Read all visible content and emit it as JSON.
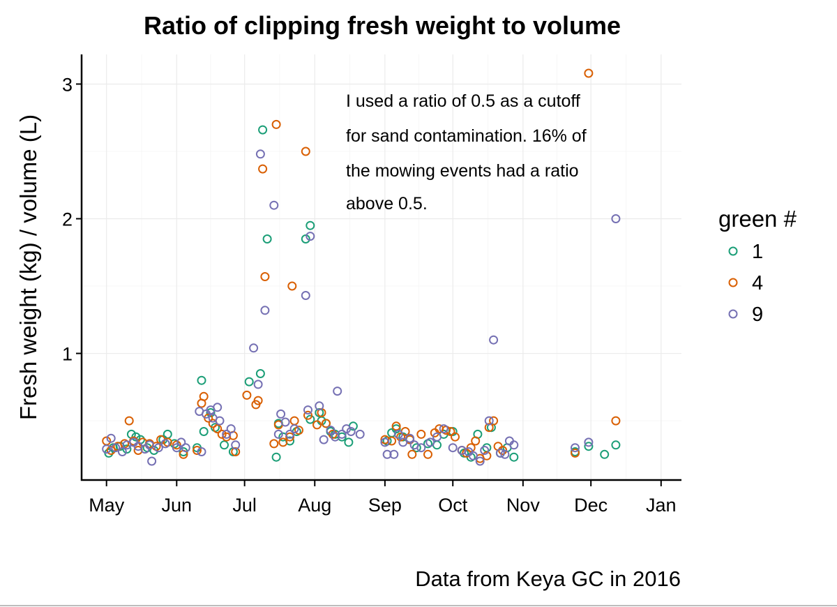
{
  "chart_data": {
    "type": "scatter",
    "title": "Ratio of clipping fresh weight to volume",
    "ylabel": "Fresh weight (kg) / volume (L)",
    "xlabel": "",
    "caption": "Data from Keya GC in 2016",
    "annotation": [
      "I used a ratio of 0.5 as a cutoff",
      "for sand contamination. 16% of",
      "the mowing events had a ratio",
      "above 0.5."
    ],
    "x_ticks": [
      "May",
      "Jun",
      "Jul",
      "Aug",
      "Sep",
      "Oct",
      "Nov",
      "Dec",
      "Jan"
    ],
    "x_tick_dates": [
      "2016-05-01",
      "2016-06-01",
      "2016-07-01",
      "2016-08-01",
      "2016-09-01",
      "2016-10-01",
      "2016-11-01",
      "2016-12-01",
      "2017-01-01"
    ],
    "xlim": [
      "2016-04-20",
      "2017-01-10"
    ],
    "y_ticks": [
      1,
      2,
      3
    ],
    "ylim": [
      0.06,
      3.22
    ],
    "grid": true,
    "legend": {
      "title": "green #",
      "placement": "right"
    },
    "series": [
      {
        "name": "1",
        "color": "#1b9e77",
        "points": [
          [
            "2016-05-02",
            0.26
          ],
          [
            "2016-05-04",
            0.3
          ],
          [
            "2016-05-07",
            0.31
          ],
          [
            "2016-05-10",
            0.29
          ],
          [
            "2016-05-12",
            0.4
          ],
          [
            "2016-05-14",
            0.38
          ],
          [
            "2016-05-16",
            0.36
          ],
          [
            "2016-05-19",
            0.3
          ],
          [
            "2016-05-22",
            0.28
          ],
          [
            "2016-05-26",
            0.36
          ],
          [
            "2016-05-28",
            0.4
          ],
          [
            "2016-05-31",
            0.33
          ],
          [
            "2016-06-04",
            0.27
          ],
          [
            "2016-06-10",
            0.3
          ],
          [
            "2016-06-12",
            0.8
          ],
          [
            "2016-06-13",
            0.42
          ],
          [
            "2016-06-16",
            0.56
          ],
          [
            "2016-06-18",
            0.45
          ],
          [
            "2016-06-22",
            0.32
          ],
          [
            "2016-06-26",
            0.27
          ],
          [
            "2016-07-03",
            0.79
          ],
          [
            "2016-07-08",
            0.85
          ],
          [
            "2016-07-09",
            2.66
          ],
          [
            "2016-07-11",
            1.85
          ],
          [
            "2016-07-15",
            0.23
          ],
          [
            "2016-07-16",
            0.48
          ],
          [
            "2016-07-18",
            0.38
          ],
          [
            "2016-07-21",
            0.35
          ],
          [
            "2016-07-24",
            0.42
          ],
          [
            "2016-07-28",
            1.85
          ],
          [
            "2016-07-30",
            1.95
          ],
          [
            "2016-07-30",
            0.51
          ],
          [
            "2016-08-03",
            0.56
          ],
          [
            "2016-08-04",
            0.5
          ],
          [
            "2016-08-06",
            0.48
          ],
          [
            "2016-08-08",
            0.42
          ],
          [
            "2016-08-10",
            0.4
          ],
          [
            "2016-08-13",
            0.38
          ],
          [
            "2016-08-16",
            0.34
          ],
          [
            "2016-08-18",
            0.46
          ],
          [
            "2016-09-02",
            0.35
          ],
          [
            "2016-09-04",
            0.41
          ],
          [
            "2016-09-06",
            0.44
          ],
          [
            "2016-09-09",
            0.38
          ],
          [
            "2016-09-12",
            0.36
          ],
          [
            "2016-09-15",
            0.3
          ],
          [
            "2016-09-20",
            0.33
          ],
          [
            "2016-09-24",
            0.32
          ],
          [
            "2016-09-27",
            0.4
          ],
          [
            "2016-10-01",
            0.42
          ],
          [
            "2016-10-06",
            0.26
          ],
          [
            "2016-10-09",
            0.23
          ],
          [
            "2016-10-12",
            0.4
          ],
          [
            "2016-10-16",
            0.3
          ],
          [
            "2016-10-18",
            0.45
          ],
          [
            "2016-10-22",
            0.26
          ],
          [
            "2016-10-25",
            0.3
          ],
          [
            "2016-10-28",
            0.23
          ],
          [
            "2016-11-24",
            0.27
          ],
          [
            "2016-11-30",
            0.31
          ],
          [
            "2016-12-07",
            0.25
          ],
          [
            "2016-12-12",
            0.32
          ]
        ]
      },
      {
        "name": "4",
        "color": "#d95f02",
        "points": [
          [
            "2016-05-01",
            0.35
          ],
          [
            "2016-05-03",
            0.28
          ],
          [
            "2016-05-06",
            0.31
          ],
          [
            "2016-05-09",
            0.33
          ],
          [
            "2016-05-11",
            0.5
          ],
          [
            "2016-05-13",
            0.35
          ],
          [
            "2016-05-15",
            0.28
          ],
          [
            "2016-05-17",
            0.34
          ],
          [
            "2016-05-20",
            0.33
          ],
          [
            "2016-05-23",
            0.31
          ],
          [
            "2016-05-25",
            0.36
          ],
          [
            "2016-05-28",
            0.34
          ],
          [
            "2016-06-01",
            0.32
          ],
          [
            "2016-06-04",
            0.25
          ],
          [
            "2016-06-10",
            0.28
          ],
          [
            "2016-06-12",
            0.63
          ],
          [
            "2016-06-13",
            0.68
          ],
          [
            "2016-06-15",
            0.52
          ],
          [
            "2016-06-17",
            0.48
          ],
          [
            "2016-06-19",
            0.44
          ],
          [
            "2016-06-21",
            0.4
          ],
          [
            "2016-06-23",
            0.38
          ],
          [
            "2016-06-26",
            0.39
          ],
          [
            "2016-06-27",
            0.27
          ],
          [
            "2016-07-02",
            0.69
          ],
          [
            "2016-07-06",
            0.62
          ],
          [
            "2016-07-07",
            0.65
          ],
          [
            "2016-07-09",
            2.37
          ],
          [
            "2016-07-10",
            1.57
          ],
          [
            "2016-07-14",
            0.33
          ],
          [
            "2016-07-15",
            2.7
          ],
          [
            "2016-07-16",
            0.47
          ],
          [
            "2016-07-18",
            0.34
          ],
          [
            "2016-07-21",
            0.38
          ],
          [
            "2016-07-22",
            1.5
          ],
          [
            "2016-07-23",
            0.5
          ],
          [
            "2016-07-25",
            0.43
          ],
          [
            "2016-07-28",
            2.5
          ],
          [
            "2016-07-29",
            0.54
          ],
          [
            "2016-08-02",
            0.47
          ],
          [
            "2016-08-04",
            0.56
          ],
          [
            "2016-08-06",
            0.48
          ],
          [
            "2016-08-09",
            0.4
          ],
          [
            "2016-09-01",
            0.36
          ],
          [
            "2016-09-04",
            0.35
          ],
          [
            "2016-09-06",
            0.46
          ],
          [
            "2016-09-08",
            0.38
          ],
          [
            "2016-09-10",
            0.42
          ],
          [
            "2016-09-12",
            0.36
          ],
          [
            "2016-09-13",
            0.25
          ],
          [
            "2016-09-17",
            0.4
          ],
          [
            "2016-09-20",
            0.25
          ],
          [
            "2016-09-23",
            0.41
          ],
          [
            "2016-09-25",
            0.44
          ],
          [
            "2016-09-28",
            0.43
          ],
          [
            "2016-09-30",
            0.42
          ],
          [
            "2016-10-02",
            0.38
          ],
          [
            "2016-10-05",
            0.28
          ],
          [
            "2016-10-07",
            0.26
          ],
          [
            "2016-10-09",
            0.3
          ],
          [
            "2016-10-11",
            0.35
          ],
          [
            "2016-10-13",
            0.22
          ],
          [
            "2016-10-16",
            0.24
          ],
          [
            "2016-10-17",
            0.45
          ],
          [
            "2016-10-19",
            0.5
          ],
          [
            "2016-10-21",
            0.31
          ],
          [
            "2016-10-23",
            0.28
          ],
          [
            "2016-11-24",
            0.26
          ],
          [
            "2016-11-30",
            3.08
          ],
          [
            "2016-12-12",
            0.5
          ]
        ]
      },
      {
        "name": "9",
        "color": "#7570b3",
        "points": [
          [
            "2016-05-01",
            0.29
          ],
          [
            "2016-05-03",
            0.37
          ],
          [
            "2016-05-05",
            0.3
          ],
          [
            "2016-05-08",
            0.27
          ],
          [
            "2016-05-10",
            0.32
          ],
          [
            "2016-05-13",
            0.34
          ],
          [
            "2016-05-15",
            0.31
          ],
          [
            "2016-05-18",
            0.29
          ],
          [
            "2016-05-20",
            0.32
          ],
          [
            "2016-05-21",
            0.2
          ],
          [
            "2016-05-24",
            0.3
          ],
          [
            "2016-05-27",
            0.33
          ],
          [
            "2016-06-01",
            0.3
          ],
          [
            "2016-06-03",
            0.34
          ],
          [
            "2016-06-05",
            0.3
          ],
          [
            "2016-06-11",
            0.57
          ],
          [
            "2016-06-12",
            0.27
          ],
          [
            "2016-06-14",
            0.55
          ],
          [
            "2016-06-16",
            0.58
          ],
          [
            "2016-06-17",
            0.52
          ],
          [
            "2016-06-19",
            0.6
          ],
          [
            "2016-06-20",
            0.5
          ],
          [
            "2016-06-23",
            0.4
          ],
          [
            "2016-06-25",
            0.44
          ],
          [
            "2016-06-27",
            0.32
          ],
          [
            "2016-07-05",
            1.04
          ],
          [
            "2016-07-07",
            0.77
          ],
          [
            "2016-07-08",
            2.48
          ],
          [
            "2016-07-10",
            1.32
          ],
          [
            "2016-07-14",
            2.1
          ],
          [
            "2016-07-16",
            0.4
          ],
          [
            "2016-07-17",
            0.55
          ],
          [
            "2016-07-19",
            0.49
          ],
          [
            "2016-07-21",
            0.4
          ],
          [
            "2016-07-23",
            0.44
          ],
          [
            "2016-07-28",
            1.43
          ],
          [
            "2016-07-29",
            0.58
          ],
          [
            "2016-07-30",
            1.87
          ],
          [
            "2016-08-03",
            0.61
          ],
          [
            "2016-08-05",
            0.36
          ],
          [
            "2016-08-08",
            0.43
          ],
          [
            "2016-08-10",
            0.38
          ],
          [
            "2016-08-11",
            0.72
          ],
          [
            "2016-08-13",
            0.4
          ],
          [
            "2016-08-15",
            0.44
          ],
          [
            "2016-08-17",
            0.42
          ],
          [
            "2016-08-21",
            0.4
          ],
          [
            "2016-09-01",
            0.34
          ],
          [
            "2016-09-02",
            0.25
          ],
          [
            "2016-09-05",
            0.25
          ],
          [
            "2016-09-07",
            0.4
          ],
          [
            "2016-09-09",
            0.34
          ],
          [
            "2016-09-12",
            0.37
          ],
          [
            "2016-09-14",
            0.32
          ],
          [
            "2016-09-17",
            0.3
          ],
          [
            "2016-09-21",
            0.34
          ],
          [
            "2016-09-24",
            0.38
          ],
          [
            "2016-09-27",
            0.44
          ],
          [
            "2016-10-01",
            0.3
          ],
          [
            "2016-10-05",
            0.28
          ],
          [
            "2016-10-08",
            0.27
          ],
          [
            "2016-10-10",
            0.24
          ],
          [
            "2016-10-13",
            0.2
          ],
          [
            "2016-10-15",
            0.28
          ],
          [
            "2016-10-17",
            0.5
          ],
          [
            "2016-10-19",
            1.1
          ],
          [
            "2016-10-22",
            0.26
          ],
          [
            "2016-10-24",
            0.25
          ],
          [
            "2016-10-26",
            0.35
          ],
          [
            "2016-10-28",
            0.32
          ],
          [
            "2016-11-24",
            0.3
          ],
          [
            "2016-11-30",
            0.34
          ],
          [
            "2016-12-12",
            2.0
          ]
        ]
      }
    ]
  }
}
